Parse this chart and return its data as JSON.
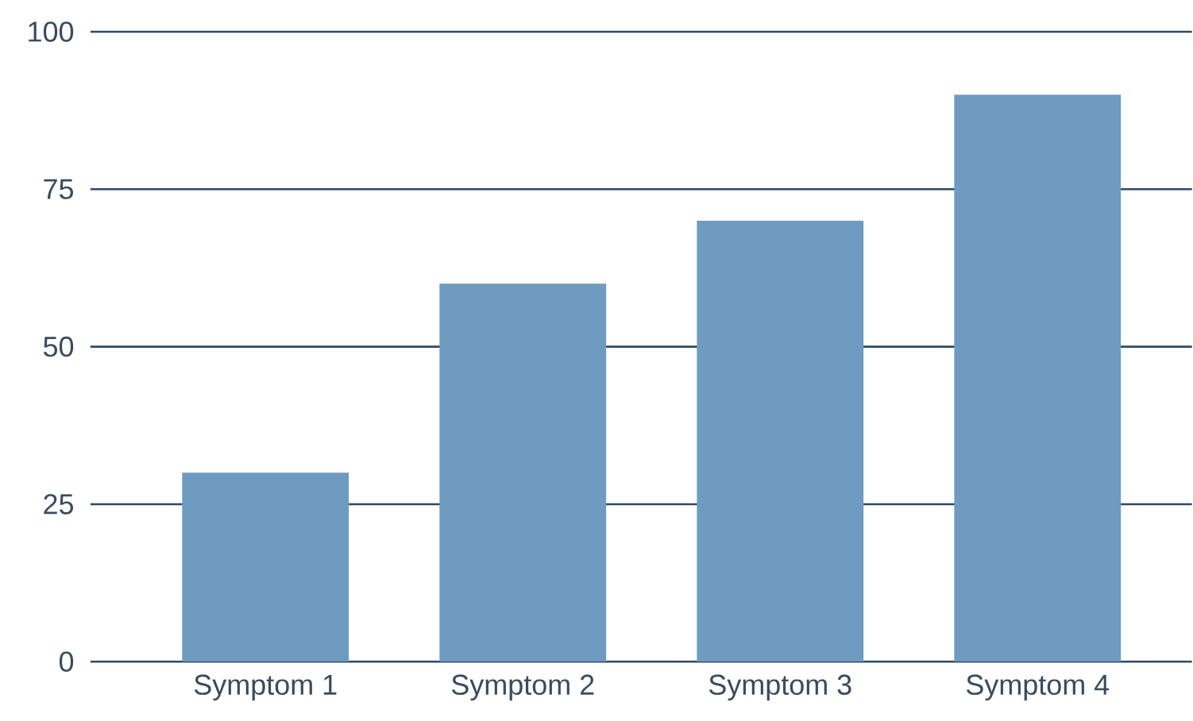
{
  "chart_data": {
    "type": "bar",
    "categories": [
      "Symptom 1",
      "Symptom 2",
      "Symptom 3",
      "Symptom 4"
    ],
    "values": [
      30,
      60,
      70,
      90
    ],
    "color": "#6f9bc0",
    "ylim": [
      0,
      100
    ],
    "yticks": [
      0,
      25,
      50,
      75,
      100
    ],
    "grid": "y"
  }
}
